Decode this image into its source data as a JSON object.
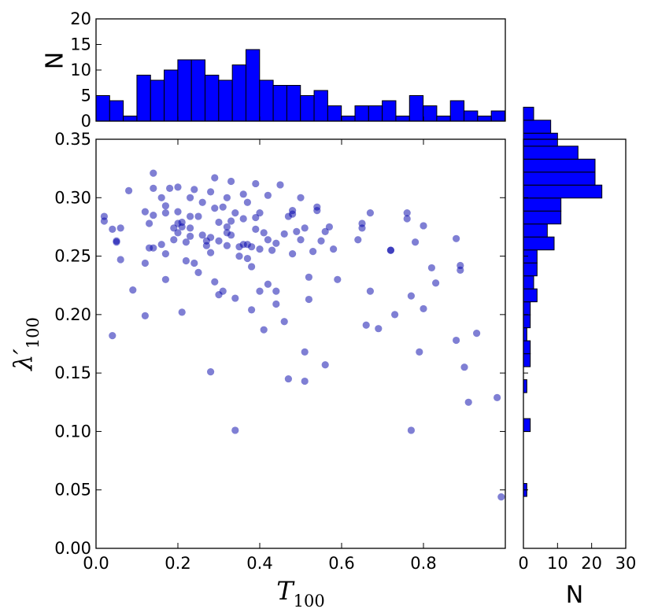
{
  "chart_data": [
    {
      "type": "scatter",
      "panel": "main",
      "xlabel_symbol": "T",
      "xlabel_sub": "100",
      "ylabel_symbol": "λ′",
      "ylabel_sub": "100",
      "xlim": [
        0.0,
        1.0
      ],
      "ylim": [
        0.0,
        0.35
      ],
      "xticks": [
        "0.0",
        "0.2",
        "0.4",
        "0.6",
        "0.8"
      ],
      "yticks": [
        "0.00",
        "0.05",
        "0.10",
        "0.15",
        "0.20",
        "0.25",
        "0.30",
        "0.35"
      ],
      "marker_color": "#0000aa",
      "points": [
        [
          0.02,
          0.284
        ],
        [
          0.02,
          0.28
        ],
        [
          0.04,
          0.273
        ],
        [
          0.05,
          0.263
        ],
        [
          0.05,
          0.262
        ],
        [
          0.06,
          0.274
        ],
        [
          0.06,
          0.247
        ],
        [
          0.04,
          0.182
        ],
        [
          0.08,
          0.306
        ],
        [
          0.09,
          0.221
        ],
        [
          0.12,
          0.199
        ],
        [
          0.12,
          0.244
        ],
        [
          0.12,
          0.288
        ],
        [
          0.13,
          0.278
        ],
        [
          0.13,
          0.257
        ],
        [
          0.14,
          0.257
        ],
        [
          0.14,
          0.285
        ],
        [
          0.14,
          0.308
        ],
        [
          0.14,
          0.321
        ],
        [
          0.16,
          0.26
        ],
        [
          0.16,
          0.3
        ],
        [
          0.17,
          0.287
        ],
        [
          0.17,
          0.293
        ],
        [
          0.17,
          0.23
        ],
        [
          0.17,
          0.252
        ],
        [
          0.18,
          0.308
        ],
        [
          0.19,
          0.264
        ],
        [
          0.19,
          0.274
        ],
        [
          0.2,
          0.278
        ],
        [
          0.2,
          0.27
        ],
        [
          0.2,
          0.288
        ],
        [
          0.2,
          0.309
        ],
        [
          0.21,
          0.279
        ],
        [
          0.21,
          0.275
        ],
        [
          0.21,
          0.202
        ],
        [
          0.22,
          0.246
        ],
        [
          0.22,
          0.262
        ],
        [
          0.23,
          0.267
        ],
        [
          0.23,
          0.274
        ],
        [
          0.23,
          0.284
        ],
        [
          0.23,
          0.3
        ],
        [
          0.24,
          0.307
        ],
        [
          0.24,
          0.244
        ],
        [
          0.25,
          0.236
        ],
        [
          0.25,
          0.284
        ],
        [
          0.26,
          0.296
        ],
        [
          0.26,
          0.268
        ],
        [
          0.27,
          0.259
        ],
        [
          0.27,
          0.263
        ],
        [
          0.28,
          0.305
        ],
        [
          0.28,
          0.253
        ],
        [
          0.28,
          0.266
        ],
        [
          0.28,
          0.151
        ],
        [
          0.29,
          0.291
        ],
        [
          0.29,
          0.317
        ],
        [
          0.29,
          0.228
        ],
        [
          0.3,
          0.263
        ],
        [
          0.3,
          0.279
        ],
        [
          0.3,
          0.217
        ],
        [
          0.31,
          0.292
        ],
        [
          0.31,
          0.22
        ],
        [
          0.32,
          0.275
        ],
        [
          0.32,
          0.3
        ],
        [
          0.32,
          0.259
        ],
        [
          0.32,
          0.27
        ],
        [
          0.33,
          0.268
        ],
        [
          0.33,
          0.314
        ],
        [
          0.33,
          0.28
        ],
        [
          0.34,
          0.287
        ],
        [
          0.34,
          0.214
        ],
        [
          0.34,
          0.101
        ],
        [
          0.35,
          0.258
        ],
        [
          0.35,
          0.25
        ],
        [
          0.36,
          0.26
        ],
        [
          0.36,
          0.282
        ],
        [
          0.36,
          0.303
        ],
        [
          0.37,
          0.296
        ],
        [
          0.37,
          0.26
        ],
        [
          0.37,
          0.248
        ],
        [
          0.38,
          0.241
        ],
        [
          0.38,
          0.258
        ],
        [
          0.38,
          0.204
        ],
        [
          0.39,
          0.312
        ],
        [
          0.39,
          0.273
        ],
        [
          0.39,
          0.283
        ],
        [
          0.4,
          0.287
        ],
        [
          0.4,
          0.256
        ],
        [
          0.4,
          0.22
        ],
        [
          0.41,
          0.187
        ],
        [
          0.41,
          0.27
        ],
        [
          0.42,
          0.302
        ],
        [
          0.42,
          0.264
        ],
        [
          0.42,
          0.226
        ],
        [
          0.43,
          0.255
        ],
        [
          0.44,
          0.261
        ],
        [
          0.44,
          0.209
        ],
        [
          0.44,
          0.22
        ],
        [
          0.45,
          0.311
        ],
        [
          0.46,
          0.194
        ],
        [
          0.46,
          0.269
        ],
        [
          0.47,
          0.284
        ],
        [
          0.47,
          0.145
        ],
        [
          0.48,
          0.286
        ],
        [
          0.48,
          0.289
        ],
        [
          0.48,
          0.252
        ],
        [
          0.49,
          0.271
        ],
        [
          0.5,
          0.3
        ],
        [
          0.5,
          0.264
        ],
        [
          0.51,
          0.274
        ],
        [
          0.51,
          0.143
        ],
        [
          0.51,
          0.168
        ],
        [
          0.52,
          0.232
        ],
        [
          0.52,
          0.213
        ],
        [
          0.53,
          0.254
        ],
        [
          0.54,
          0.292
        ],
        [
          0.54,
          0.289
        ],
        [
          0.55,
          0.263
        ],
        [
          0.56,
          0.157
        ],
        [
          0.56,
          0.271
        ],
        [
          0.57,
          0.275
        ],
        [
          0.58,
          0.256
        ],
        [
          0.59,
          0.23
        ],
        [
          0.64,
          0.264
        ],
        [
          0.65,
          0.278
        ],
        [
          0.65,
          0.274
        ],
        [
          0.66,
          0.191
        ],
        [
          0.67,
          0.287
        ],
        [
          0.67,
          0.22
        ],
        [
          0.69,
          0.188
        ],
        [
          0.72,
          0.255
        ],
        [
          0.72,
          0.255
        ],
        [
          0.73,
          0.2
        ],
        [
          0.76,
          0.287
        ],
        [
          0.76,
          0.282
        ],
        [
          0.77,
          0.216
        ],
        [
          0.77,
          0.101
        ],
        [
          0.78,
          0.262
        ],
        [
          0.79,
          0.168
        ],
        [
          0.8,
          0.276
        ],
        [
          0.8,
          0.205
        ],
        [
          0.82,
          0.24
        ],
        [
          0.83,
          0.227
        ],
        [
          0.88,
          0.265
        ],
        [
          0.88,
          0.178
        ],
        [
          0.89,
          0.242
        ],
        [
          0.89,
          0.238
        ],
        [
          0.9,
          0.155
        ],
        [
          0.91,
          0.125
        ],
        [
          0.93,
          0.184
        ],
        [
          0.98,
          0.129
        ],
        [
          0.99,
          0.044
        ]
      ]
    },
    {
      "type": "bar",
      "panel": "top-histogram",
      "ylabel": "N",
      "ylim": [
        0,
        20
      ],
      "yticks": [
        "0",
        "5",
        "10",
        "15",
        "20"
      ],
      "bin_start": 0.0,
      "bin_width": 0.0333,
      "bar_color": "#0000ff",
      "values": [
        5,
        4,
        1,
        9,
        8,
        10,
        12,
        12,
        9,
        8,
        11,
        14,
        8,
        7,
        7,
        5,
        6,
        3,
        1,
        3,
        3,
        4,
        1,
        5,
        3,
        1,
        4,
        2,
        1,
        2
      ]
    },
    {
      "type": "bar",
      "panel": "right-histogram",
      "orientation": "horizontal",
      "xlabel": "N",
      "xlim": [
        0,
        30
      ],
      "xticks": [
        "0",
        "10",
        "20",
        "30"
      ],
      "bin_start": 0.0,
      "bin_width": 0.0111,
      "bar_color": "#0000ff",
      "values": [
        0,
        0,
        0,
        0,
        1,
        0,
        0,
        0,
        0,
        2,
        0,
        0,
        1,
        0,
        2,
        2,
        1,
        2,
        2,
        4,
        3,
        4,
        4,
        9,
        7,
        11,
        11,
        23,
        21,
        21,
        16,
        10,
        8,
        3
      ]
    }
  ]
}
